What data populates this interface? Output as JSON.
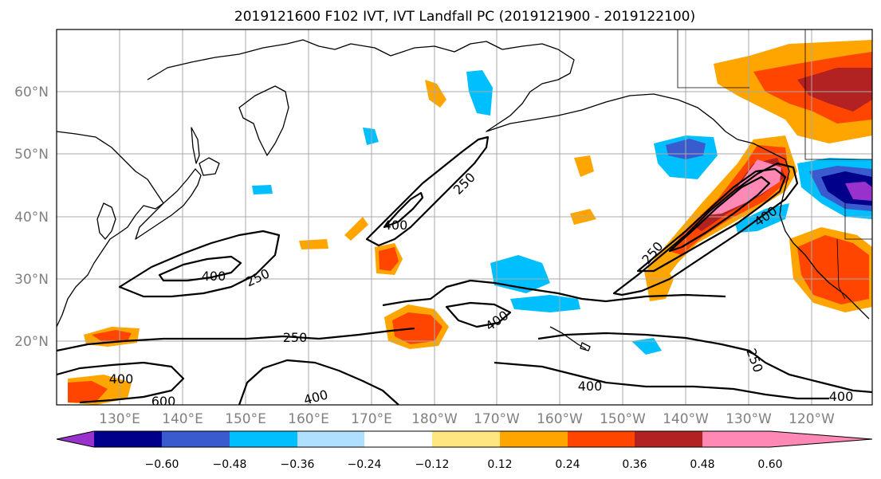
{
  "title": "2019121600 F102 IVT, IVT Landfall PC (2019121900 - 2019122100)",
  "lat_labels": [
    "60°N",
    "50°N",
    "40°N",
    "30°N",
    "20°N"
  ],
  "lon_labels": [
    "130°E",
    "140°E",
    "150°E",
    "160°E",
    "170°E",
    "180°W",
    "170°W",
    "160°W",
    "150°W",
    "140°W",
    "130°W",
    "120°W"
  ],
  "colorbar": {
    "ticks": [
      "−0.60",
      "−0.48",
      "−0.36",
      "−0.24",
      "−0.12",
      "0.12",
      "0.24",
      "0.36",
      "0.48",
      "0.60"
    ],
    "colors": [
      "#9932cc",
      "#00008b",
      "#3a5bcd",
      "#00bfff",
      "#b0e0ff",
      "#ffffff",
      "#ffe680",
      "#ffa500",
      "#ff4500",
      "#b22222",
      "#ff88b4"
    ]
  },
  "contour_labels": [
    "400",
    "250",
    "250",
    "400",
    "250",
    "400",
    "400",
    "250",
    "400",
    "250",
    "400",
    "400",
    "600",
    "400",
    "250",
    "400"
  ]
}
